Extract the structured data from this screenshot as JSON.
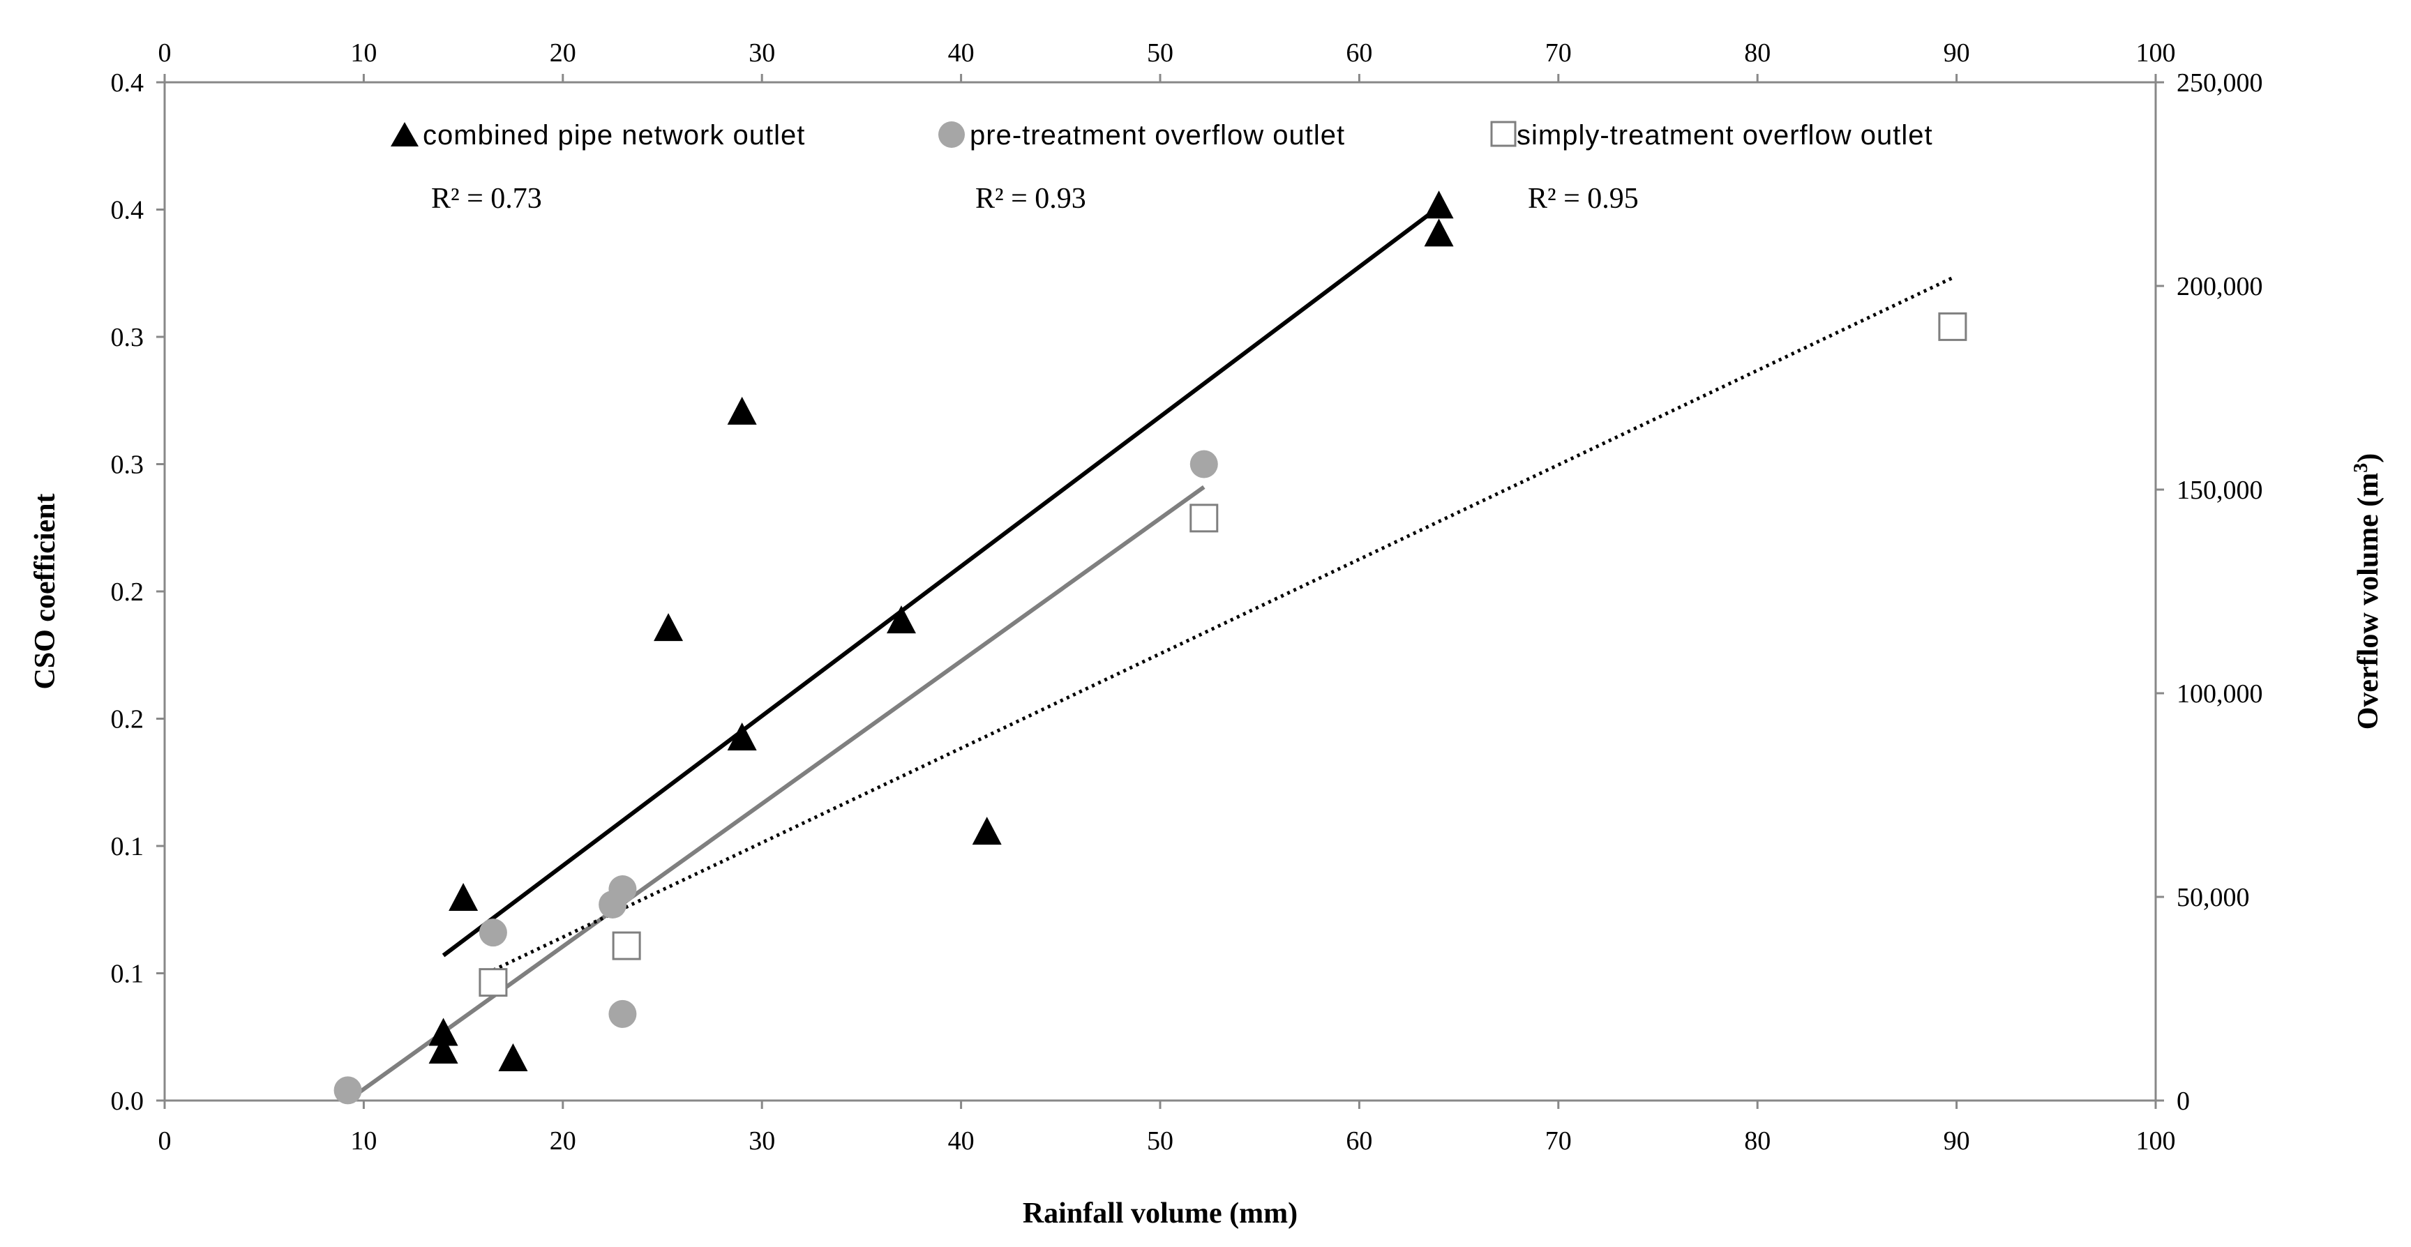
{
  "chart_data": {
    "type": "scatter",
    "title": "",
    "xlabel": "Rainfall volume (mm)",
    "ylabel_left": "CSO coefficient",
    "ylabel_right": "Overflow volume (m³)",
    "ylabel_right_main": "Overflow volume (m",
    "ylabel_right_sup": "3",
    "ylabel_right_close": ")",
    "xlim": [
      0,
      100
    ],
    "x_ticks": [
      0,
      10,
      20,
      30,
      40,
      50,
      60,
      70,
      80,
      90,
      100
    ],
    "x_tick_labels": [
      "0",
      "10",
      "20",
      "30",
      "40",
      "50",
      "60",
      "70",
      "80",
      "90",
      "100"
    ],
    "ylim_left": [
      0,
      0.4
    ],
    "y_left_ticks": [
      0,
      0.05,
      0.1,
      0.15,
      0.2,
      0.25,
      0.3,
      0.35,
      0.4
    ],
    "y_left_tick_labels": [
      "0.0",
      "0.1",
      "0.1",
      "0.2",
      "0.2",
      "0.3",
      "0.3",
      "0.4",
      "0.4"
    ],
    "ylim_right": [
      0,
      250000
    ],
    "y_right_ticks": [
      0,
      50000,
      100000,
      150000,
      200000,
      250000
    ],
    "y_right_tick_labels": [
      "0",
      "50,000",
      "100,000",
      "150,000",
      "200,000",
      "250,000"
    ],
    "grid": false,
    "legend_position": "top",
    "series": [
      {
        "name": "combined pipe network outlet",
        "marker": "filled-triangle",
        "color": "#000000",
        "axis": "left",
        "x": [
          14,
          14,
          15,
          17.5,
          25.3,
          29,
          29,
          37,
          41.3,
          64,
          64
        ],
        "y": [
          0.027,
          0.02,
          0.08,
          0.017,
          0.186,
          0.271,
          0.143,
          0.189,
          0.106,
          0.352,
          0.341
        ],
        "r2_label": "R² = 0.73",
        "trendline": {
          "style": "solid",
          "color": "#000000",
          "x": [
            14,
            64
          ],
          "y": [
            0.057,
            0.351
          ]
        }
      },
      {
        "name": "pre-treatment overflow outlet",
        "marker": "filled-circle",
        "color": "#a6a6a6",
        "axis": "left",
        "x": [
          9.2,
          16.5,
          22.5,
          23,
          23,
          52.2
        ],
        "y": [
          0.004,
          0.066,
          0.077,
          0.083,
          0.034,
          0.25
        ],
        "r2_label": "R² = 0.93",
        "trendline": {
          "style": "solid",
          "color": "#7f7f7f",
          "x": [
            9.2,
            52.2
          ],
          "y": [
            0.0,
            0.241
          ]
        }
      },
      {
        "name": "simply-treatment overflow outlet",
        "marker": "open-square",
        "color": "#7f7f7f",
        "axis": "right",
        "x": [
          16.5,
          23.2,
          52.2,
          89.8
        ],
        "y": [
          29000,
          38000,
          143000,
          190000
        ],
        "r2_label": "R² = 0.95",
        "trendline": {
          "style": "dotted",
          "color": "#000000",
          "x": [
            16.5,
            89.8
          ],
          "y": [
            32000,
            202000
          ]
        }
      }
    ]
  }
}
